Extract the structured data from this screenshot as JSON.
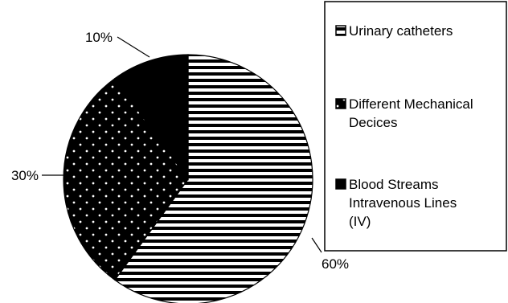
{
  "chart_data": {
    "type": "pie",
    "title": "",
    "slices": [
      {
        "label": "Urinary catheters",
        "value": 60,
        "display": "60%",
        "pattern": "horizontal-stripes"
      },
      {
        "label": "Different Mechanical Decices",
        "value": 30,
        "display": "30%",
        "pattern": "dots"
      },
      {
        "label": "Blood Streams Intravenous Lines (IV)",
        "value": 10,
        "display": "10%",
        "pattern": "solid-black"
      }
    ],
    "legend": {
      "placement": "right",
      "entries": [
        {
          "lines": [
            "Urinary catheters"
          ]
        },
        {
          "lines": [
            "Different Mechanical",
            "Decices"
          ]
        },
        {
          "lines": [
            "Blood Streams",
            "Intravenous Lines",
            "(IV)"
          ]
        }
      ]
    },
    "colors": {
      "background": "#ffffff",
      "ink": "#000000"
    }
  }
}
